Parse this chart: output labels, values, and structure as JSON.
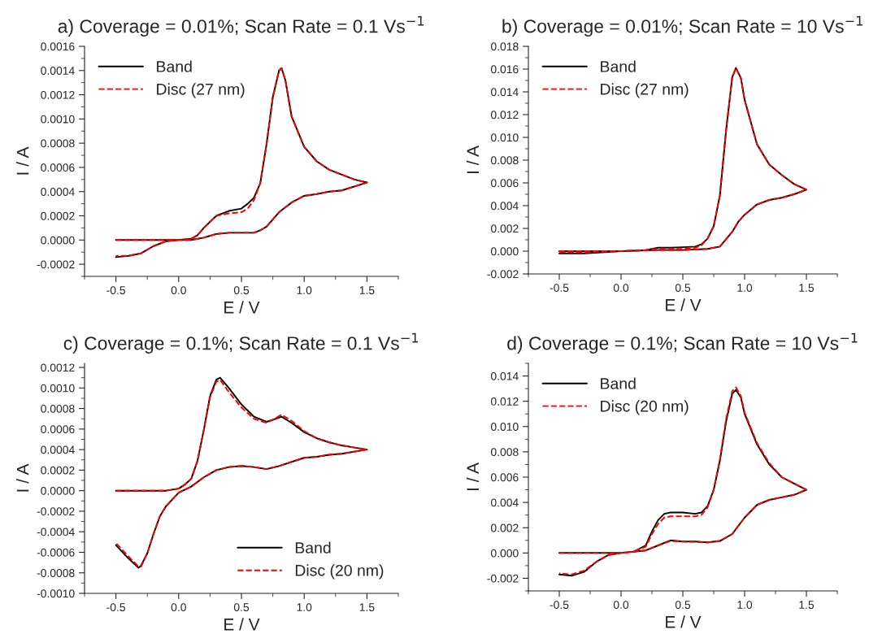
{
  "chart_data": [
    {
      "type": "line",
      "title": "a) Coverage = 0.01%; Scan Rate = 0.1 Vs$^{−1}$",
      "xlabel": "E / V",
      "ylabel": "I / A",
      "xlim": [
        -0.75,
        1.75
      ],
      "ylim": [
        -0.0003,
        0.0016
      ],
      "legend": "top left",
      "xticks": [
        {
          "value": -0.5,
          "label": "-0.5"
        },
        {
          "value": 0,
          "label": "0.0"
        },
        {
          "value": 0.5,
          "label": "0.5"
        },
        {
          "value": 1.0,
          "label": "1.0"
        },
        {
          "value": 1.5,
          "label": "1.5"
        }
      ],
      "yticks": [
        {
          "value": -0.0002,
          "label": "-0.0002"
        },
        {
          "value": 0,
          "label": "0.0000"
        },
        {
          "value": 0.0002,
          "label": "0.0002"
        },
        {
          "value": 0.0004,
          "label": "0.0004"
        },
        {
          "value": 0.0006,
          "label": "0.0006"
        },
        {
          "value": 0.0008,
          "label": "0.0008"
        },
        {
          "value": 0.001,
          "label": "0.0010"
        },
        {
          "value": 0.0012,
          "label": "0.0012"
        },
        {
          "value": 0.0014,
          "label": "0.0014"
        },
        {
          "value": 0.0016,
          "label": "0.0016"
        }
      ],
      "series": [
        {
          "name": "Band",
          "color": "#000000",
          "line_style": "solid",
          "x": [
            -0.5,
            -0.2,
            0,
            0.1,
            0.15,
            0.2,
            0.3,
            0.4,
            0.5,
            0.55,
            0.6,
            0.65,
            0.7,
            0.75,
            0.8,
            0.82,
            0.85,
            0.9,
            1.0,
            1.1,
            1.2,
            1.3,
            1.4,
            1.5,
            1.3,
            1.2,
            1.1,
            1.0,
            0.9,
            0.8,
            0.7,
            0.65,
            0.6,
            0.5,
            0.4,
            0.3,
            0.2,
            0.1,
            0,
            -0.1,
            -0.2,
            -0.3,
            -0.4,
            -0.5
          ],
          "values": [
            0,
            0,
            0,
            1e-05,
            4e-05,
            0.0001,
            0.0002,
            0.00024,
            0.00026,
            0.0003,
            0.00035,
            0.00047,
            0.00079,
            0.00118,
            0.0014,
            0.00142,
            0.00132,
            0.00102,
            0.00077,
            0.00065,
            0.00058,
            0.00054,
            0.0005,
            0.000475,
            0.00041,
            0.0004,
            0.00038,
            0.000365,
            0.00031,
            0.00023,
            0.00011,
            8e-05,
            6e-05,
            6e-05,
            6e-05,
            5e-05,
            2e-05,
            0,
            0,
            -1e-05,
            -5e-05,
            -0.00011,
            -0.00013,
            -0.00014
          ]
        },
        {
          "name": "Disc (27 nm)",
          "color": "#ff0000",
          "line_style": "dashed",
          "x": [
            -0.5,
            -0.2,
            0,
            0.1,
            0.15,
            0.2,
            0.3,
            0.4,
            0.5,
            0.55,
            0.6,
            0.65,
            0.7,
            0.75,
            0.8,
            0.82,
            0.85,
            0.9,
            1.0,
            1.1,
            1.2,
            1.3,
            1.4,
            1.5,
            1.3,
            1.2,
            1.1,
            1.0,
            0.9,
            0.8,
            0.7,
            0.65,
            0.6,
            0.5,
            0.4,
            0.3,
            0.2,
            0.1,
            0,
            -0.1,
            -0.2,
            -0.3,
            -0.4,
            -0.5
          ],
          "values": [
            0,
            0,
            0,
            1e-05,
            4e-05,
            0.0001,
            0.0002,
            0.00022,
            0.00023,
            0.00026,
            0.00033,
            0.00047,
            0.00079,
            0.00118,
            0.0014,
            0.00142,
            0.00132,
            0.00102,
            0.00077,
            0.00065,
            0.00058,
            0.00054,
            0.0005,
            0.000475,
            0.00041,
            0.0004,
            0.00038,
            0.000365,
            0.00031,
            0.00023,
            0.00011,
            8e-05,
            6e-05,
            6e-05,
            6e-05,
            5e-05,
            2e-05,
            0,
            0,
            -1e-05,
            -5e-05,
            -0.00011,
            -0.00013,
            -0.00013
          ]
        }
      ]
    },
    {
      "type": "line",
      "title": "b) Coverage = 0.01%; Scan Rate = 10 Vs$^{−1}$",
      "xlabel": "E / V",
      "ylabel": "I / A",
      "xlim": [
        -0.75,
        1.75
      ],
      "ylim": [
        -0.002,
        0.018
      ],
      "legend": "top left",
      "xticks": [
        {
          "value": -0.5,
          "label": "-0.5"
        },
        {
          "value": 0,
          "label": "0.0"
        },
        {
          "value": 0.5,
          "label": "0.5"
        },
        {
          "value": 1.0,
          "label": "1.0"
        },
        {
          "value": 1.5,
          "label": "1.5"
        }
      ],
      "yticks": [
        {
          "value": -0.002,
          "label": "-0.002"
        },
        {
          "value": 0,
          "label": "0.000"
        },
        {
          "value": 0.002,
          "label": "0.002"
        },
        {
          "value": 0.004,
          "label": "0.004"
        },
        {
          "value": 0.006,
          "label": "0.006"
        },
        {
          "value": 0.008,
          "label": "0.008"
        },
        {
          "value": 0.01,
          "label": "0.010"
        },
        {
          "value": 0.012,
          "label": "0.012"
        },
        {
          "value": 0.014,
          "label": "0.014"
        },
        {
          "value": 0.016,
          "label": "0.016"
        },
        {
          "value": 0.018,
          "label": "0.018"
        }
      ],
      "series": [
        {
          "name": "Band",
          "color": "#000000",
          "line_style": "solid",
          "x": [
            -0.5,
            0,
            0.2,
            0.3,
            0.4,
            0.5,
            0.6,
            0.65,
            0.7,
            0.75,
            0.8,
            0.85,
            0.9,
            0.93,
            0.97,
            1.0,
            1.1,
            1.2,
            1.3,
            1.4,
            1.5,
            1.4,
            1.3,
            1.2,
            1.1,
            1.0,
            0.95,
            0.9,
            0.8,
            0.7,
            0.5,
            0.3,
            0,
            -0.3,
            -0.5
          ],
          "values": [
            0,
            0,
            0.0001,
            0.0003,
            0.0003,
            0.00035,
            0.0004,
            0.0006,
            0.0011,
            0.0022,
            0.0049,
            0.0106,
            0.0153,
            0.0161,
            0.0152,
            0.0133,
            0.0094,
            0.0076,
            0.0067,
            0.0059,
            0.0054,
            0.005,
            0.0047,
            0.0045,
            0.0041,
            0.0032,
            0.0026,
            0.0017,
            0.0004,
            0.0002,
            0.0001,
            0.0001,
            0,
            -0.0002,
            -0.0002
          ]
        },
        {
          "name": "Disc (27 nm)",
          "color": "#ff0000",
          "line_style": "dashed",
          "x": [
            -0.5,
            0,
            0.2,
            0.3,
            0.4,
            0.5,
            0.6,
            0.65,
            0.7,
            0.75,
            0.8,
            0.85,
            0.9,
            0.93,
            0.97,
            1.0,
            1.1,
            1.2,
            1.3,
            1.4,
            1.5,
            1.4,
            1.3,
            1.2,
            1.1,
            1.0,
            0.95,
            0.9,
            0.8,
            0.7,
            0.5,
            0.3,
            0,
            -0.3,
            -0.5
          ],
          "values": [
            0,
            0,
            0.0001,
            0.0002,
            0.0002,
            0.0002,
            0.0003,
            0.0005,
            0.0011,
            0.0022,
            0.0049,
            0.0106,
            0.0153,
            0.0161,
            0.0152,
            0.0133,
            0.0094,
            0.0076,
            0.0067,
            0.0059,
            0.0054,
            0.005,
            0.0047,
            0.0045,
            0.0041,
            0.0032,
            0.0026,
            0.0017,
            0.0004,
            0.0002,
            0.0001,
            0.0001,
            0,
            -0.0001,
            -0.0001
          ]
        }
      ]
    },
    {
      "type": "line",
      "title": "c) Coverage = 0.1%; Scan Rate = 0.1 Vs$^{−1}$",
      "xlabel": "E / V",
      "ylabel": "I / A",
      "xlim": [
        -0.75,
        1.75
      ],
      "ylim": [
        -0.001,
        0.00124
      ],
      "legend": "bottom right",
      "xticks": [
        {
          "value": -0.5,
          "label": "-0.5"
        },
        {
          "value": 0,
          "label": "0.0"
        },
        {
          "value": 0.5,
          "label": "0.5"
        },
        {
          "value": 1.0,
          "label": "1.0"
        },
        {
          "value": 1.5,
          "label": "1.5"
        }
      ],
      "yticks": [
        {
          "value": -0.001,
          "label": "-0.0010"
        },
        {
          "value": -0.0008,
          "label": "-0.0008"
        },
        {
          "value": -0.0006,
          "label": "-0.0006"
        },
        {
          "value": -0.0004,
          "label": "-0.0004"
        },
        {
          "value": -0.0002,
          "label": "-0.0002"
        },
        {
          "value": 0,
          "label": "0.0000"
        },
        {
          "value": 0.0002,
          "label": "0.0002"
        },
        {
          "value": 0.0004,
          "label": "0.0004"
        },
        {
          "value": 0.0006,
          "label": "0.0006"
        },
        {
          "value": 0.0008,
          "label": "0.0008"
        },
        {
          "value": 0.001,
          "label": "0.0010"
        },
        {
          "value": 0.0012,
          "label": "0.0012"
        }
      ],
      "series": [
        {
          "name": "Band",
          "color": "#000000",
          "line_style": "solid",
          "x": [
            -0.5,
            -0.1,
            0,
            0.05,
            0.1,
            0.15,
            0.2,
            0.25,
            0.3,
            0.33,
            0.4,
            0.5,
            0.6,
            0.7,
            0.75,
            0.82,
            0.9,
            1.0,
            1.1,
            1.2,
            1.3,
            1.4,
            1.5,
            1.3,
            1.2,
            1.1,
            1.0,
            0.9,
            0.8,
            0.7,
            0.6,
            0.5,
            0.4,
            0.3,
            0.2,
            0.1,
            0,
            -0.1,
            -0.15,
            -0.2,
            -0.25,
            -0.3,
            -0.32,
            -0.4,
            -0.5
          ],
          "values": [
            0,
            0,
            2e-05,
            6e-05,
            0.000115,
            0.00029,
            0.00059,
            0.00092,
            0.00108,
            0.0011,
            0.001,
            0.00084,
            0.00072,
            0.00067,
            0.00069,
            0.00072,
            0.00066,
            0.00057,
            0.00051,
            0.00047,
            0.00044,
            0.00042,
            0.0004,
            0.00036,
            0.00035,
            0.00033,
            0.00032,
            0.00028,
            0.00024,
            0.00021,
            0.00023,
            0.00024,
            0.00023,
            0.0002,
            0.00013,
            4e-05,
            -2e-05,
            -0.00015,
            -0.00025,
            -0.00042,
            -0.00061,
            -0.00073,
            -0.00075,
            -0.00066,
            -0.00053
          ]
        },
        {
          "name": "Disc (20 nm)",
          "color": "#ff0000",
          "line_style": "dashed",
          "x": [
            -0.5,
            -0.1,
            0,
            0.05,
            0.1,
            0.15,
            0.2,
            0.25,
            0.3,
            0.33,
            0.4,
            0.5,
            0.6,
            0.7,
            0.75,
            0.82,
            0.9,
            1.0,
            1.1,
            1.2,
            1.3,
            1.4,
            1.5,
            1.3,
            1.2,
            1.1,
            1.0,
            0.9,
            0.8,
            0.7,
            0.6,
            0.5,
            0.4,
            0.3,
            0.2,
            0.1,
            0,
            -0.1,
            -0.15,
            -0.2,
            -0.25,
            -0.3,
            -0.32,
            -0.4,
            -0.5
          ],
          "values": [
            0,
            0,
            2e-05,
            6e-05,
            0.000115,
            0.00029,
            0.00059,
            0.00091,
            0.00106,
            0.00108,
            0.00096,
            0.00081,
            0.0007,
            0.00066,
            0.00069,
            0.00074,
            0.00068,
            0.00058,
            0.00051,
            0.00047,
            0.00044,
            0.00042,
            0.0004,
            0.00036,
            0.00035,
            0.00033,
            0.00032,
            0.00028,
            0.00024,
            0.00021,
            0.00023,
            0.00024,
            0.00023,
            0.0002,
            0.00013,
            4e-05,
            -2e-05,
            -0.00015,
            -0.00025,
            -0.00042,
            -0.00061,
            -0.00074,
            -0.00074,
            -0.00064,
            -0.00051
          ]
        }
      ]
    },
    {
      "type": "line",
      "title": "d) Coverage = 0.1%; Scan Rate = 10 Vs$^{−1}$",
      "xlabel": "E / V",
      "ylabel": "I / A",
      "xlim": [
        -0.75,
        1.75
      ],
      "ylim": [
        -0.003,
        0.015
      ],
      "legend": "top left",
      "xticks": [
        {
          "value": -0.5,
          "label": "-0.5"
        },
        {
          "value": 0,
          "label": "0.0"
        },
        {
          "value": 0.5,
          "label": "0.5"
        },
        {
          "value": 1.0,
          "label": "1.0"
        },
        {
          "value": 1.5,
          "label": "1.5"
        }
      ],
      "yticks": [
        {
          "value": -0.002,
          "label": "-0.002"
        },
        {
          "value": 0,
          "label": "0.000"
        },
        {
          "value": 0.002,
          "label": "0.002"
        },
        {
          "value": 0.004,
          "label": "0.004"
        },
        {
          "value": 0.006,
          "label": "0.006"
        },
        {
          "value": 0.008,
          "label": "0.008"
        },
        {
          "value": 0.01,
          "label": "0.010"
        },
        {
          "value": 0.012,
          "label": "0.012"
        },
        {
          "value": 0.014,
          "label": "0.014"
        }
      ],
      "series": [
        {
          "name": "Band",
          "color": "#000000",
          "line_style": "solid",
          "x": [
            -0.5,
            0,
            0.1,
            0.2,
            0.25,
            0.3,
            0.35,
            0.4,
            0.5,
            0.6,
            0.65,
            0.7,
            0.75,
            0.8,
            0.85,
            0.9,
            0.93,
            0.97,
            1.0,
            1.1,
            1.2,
            1.3,
            1.4,
            1.5,
            1.4,
            1.3,
            1.2,
            1.1,
            1.0,
            0.9,
            0.8,
            0.7,
            0.6,
            0.5,
            0.4,
            0.3,
            0.2,
            0.1,
            0,
            -0.1,
            -0.2,
            -0.3,
            -0.4,
            -0.5
          ],
          "values": [
            0,
            0,
            0.0001,
            0.0006,
            0.0017,
            0.0026,
            0.0031,
            0.0032,
            0.0032,
            0.0031,
            0.0032,
            0.0037,
            0.005,
            0.0073,
            0.0104,
            0.0126,
            0.0129,
            0.0123,
            0.011,
            0.0086,
            0.007,
            0.006,
            0.0055,
            0.005,
            0.0046,
            0.0044,
            0.0042,
            0.0038,
            0.0028,
            0.0015,
            0.00095,
            0.00084,
            0.0009,
            0.0009,
            0.001,
            0.0006,
            0.0002,
            0.0001,
            0,
            -0.00015,
            -0.0007,
            -0.0015,
            -0.0018,
            -0.0017
          ]
        },
        {
          "name": "Disc (20 nm)",
          "color": "#ff0000",
          "line_style": "dashed",
          "x": [
            -0.5,
            0,
            0.1,
            0.2,
            0.25,
            0.3,
            0.35,
            0.4,
            0.5,
            0.6,
            0.65,
            0.7,
            0.75,
            0.8,
            0.85,
            0.9,
            0.93,
            0.97,
            1.0,
            1.1,
            1.2,
            1.3,
            1.4,
            1.5,
            1.4,
            1.3,
            1.2,
            1.1,
            1.0,
            0.9,
            0.8,
            0.7,
            0.6,
            0.5,
            0.4,
            0.3,
            0.2,
            0.1,
            0,
            -0.1,
            -0.2,
            -0.3,
            -0.4,
            -0.5
          ],
          "values": [
            0,
            0,
            0.0001,
            0.0005,
            0.0015,
            0.0023,
            0.0028,
            0.0029,
            0.0029,
            0.0029,
            0.003,
            0.0036,
            0.005,
            0.0074,
            0.0106,
            0.0128,
            0.0131,
            0.0124,
            0.0111,
            0.0087,
            0.0071,
            0.006,
            0.0055,
            0.005,
            0.0046,
            0.0044,
            0.0042,
            0.0038,
            0.0028,
            0.0015,
            0.00095,
            0.00082,
            0.00088,
            0.0009,
            0.00095,
            0.0006,
            0.0002,
            0.0001,
            0,
            -0.00015,
            -0.0007,
            -0.0014,
            -0.0017,
            -0.0016
          ]
        }
      ]
    }
  ]
}
